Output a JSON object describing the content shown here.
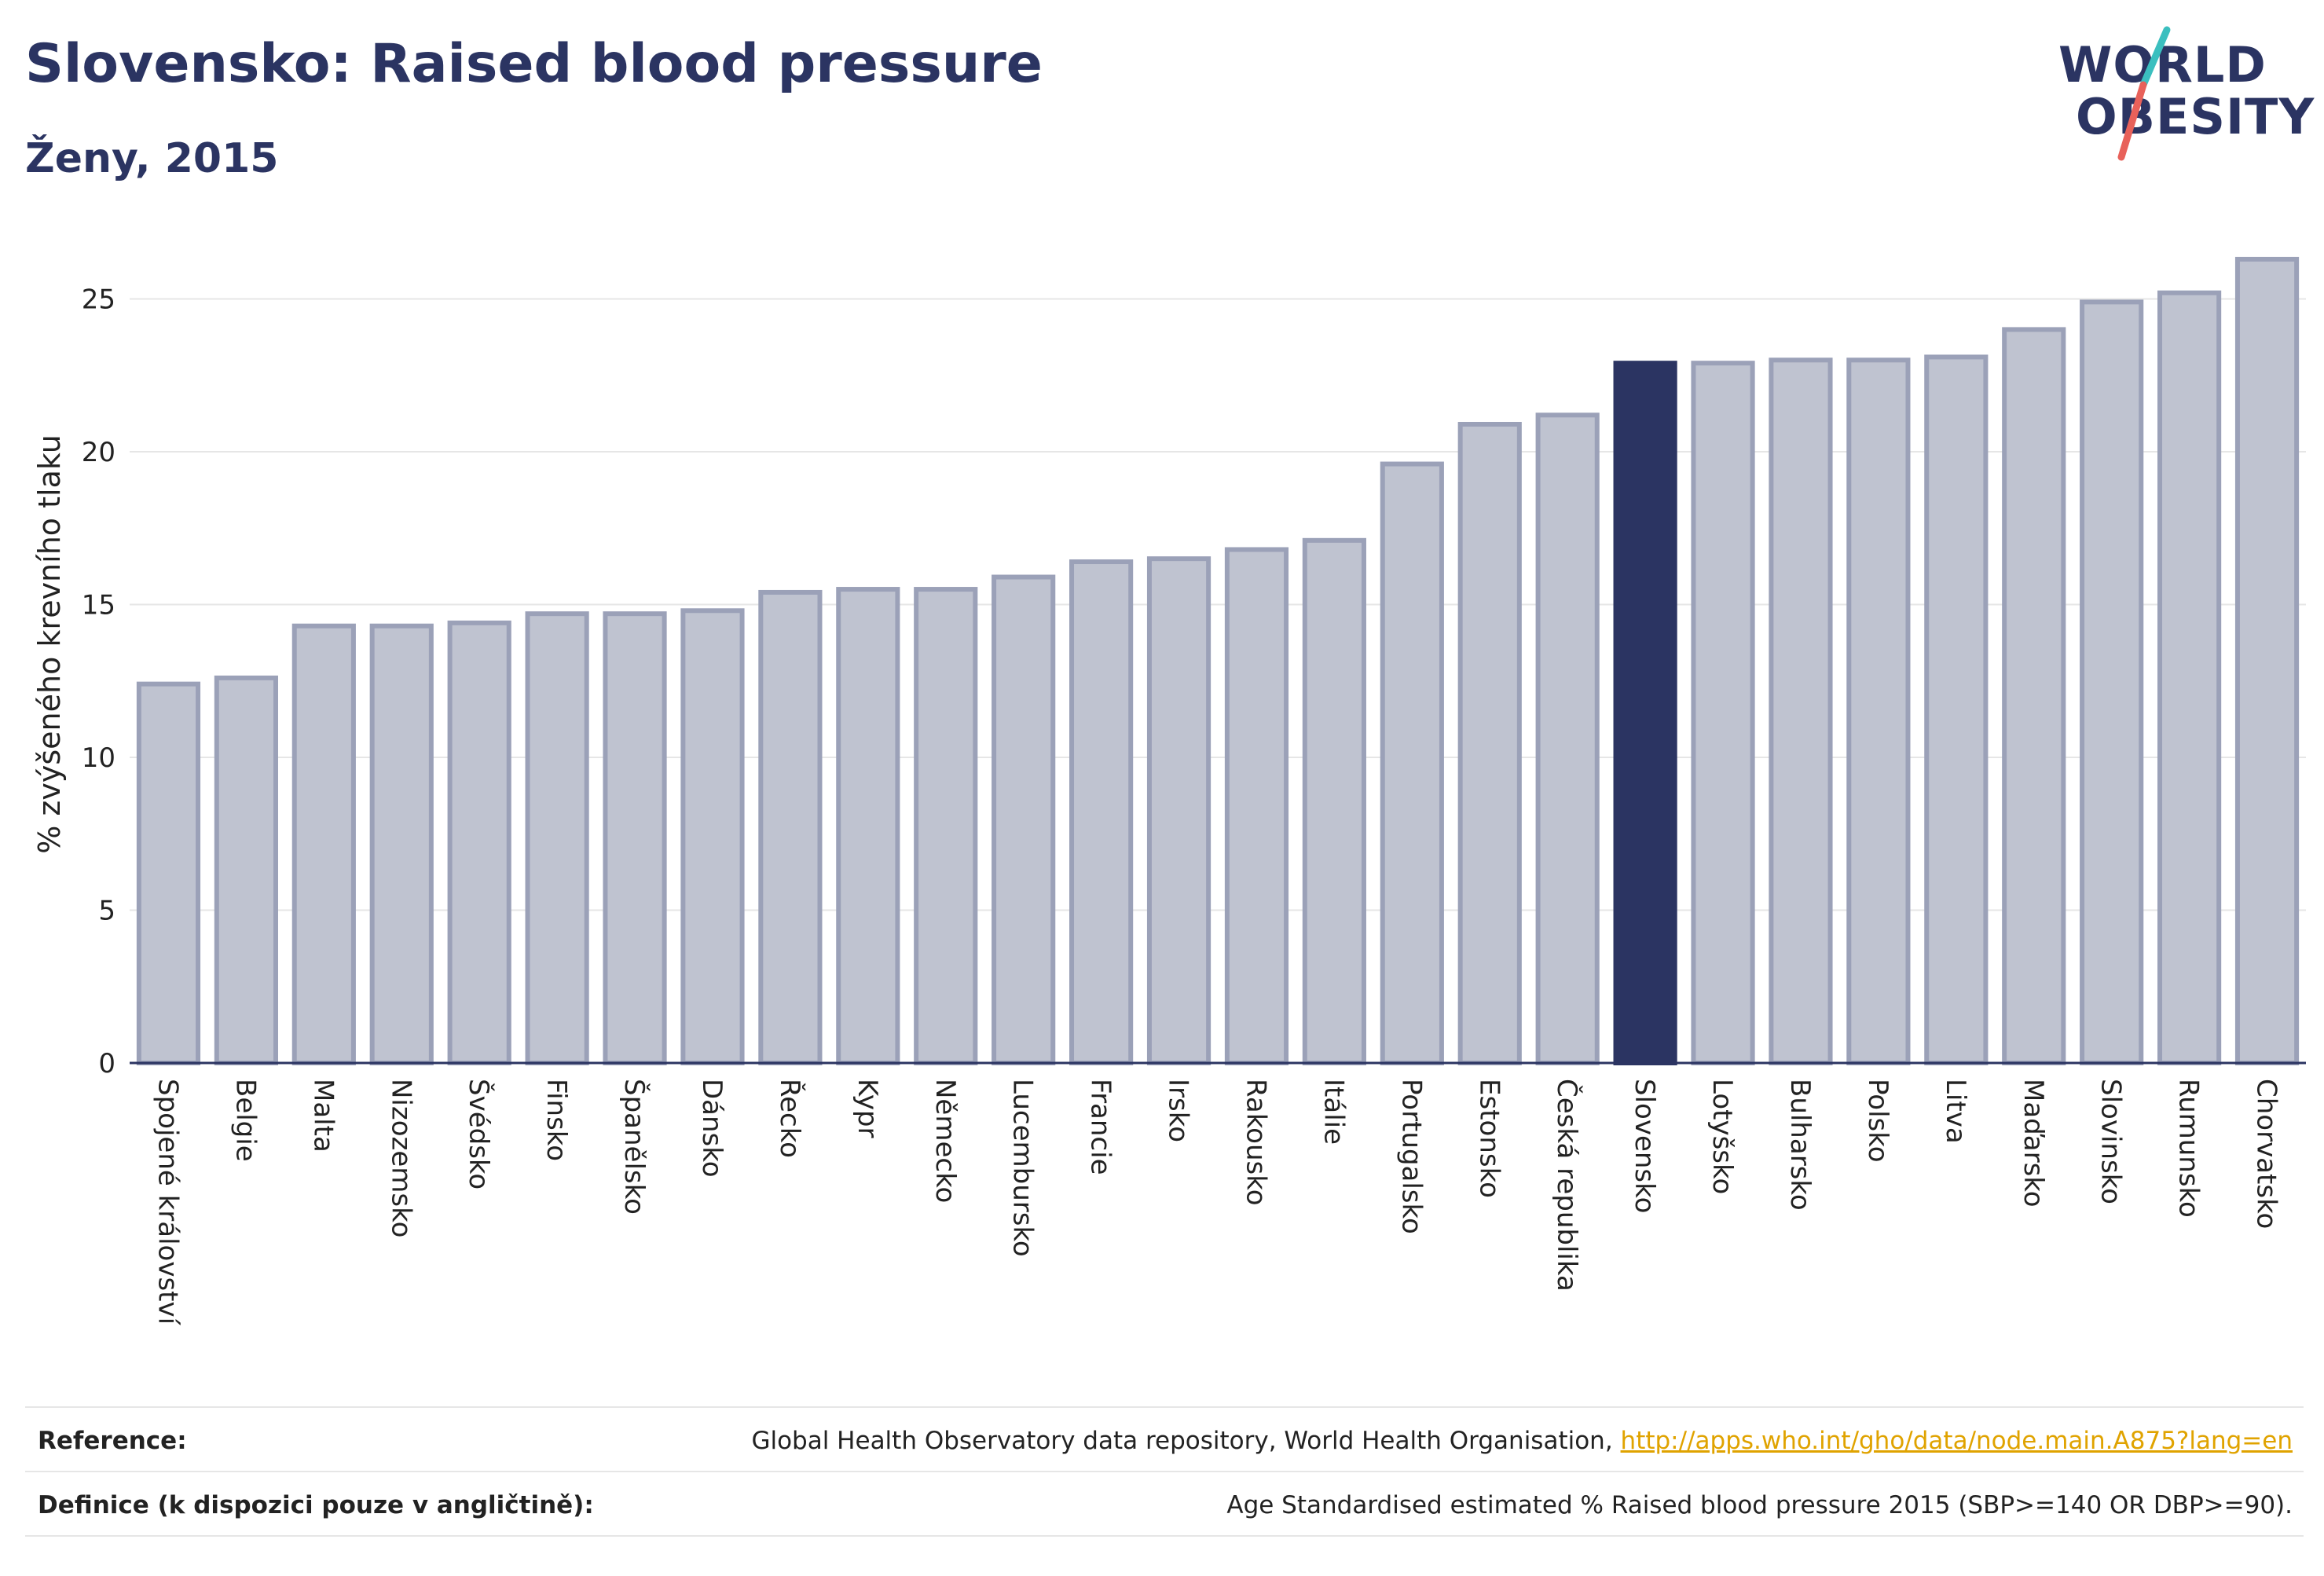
{
  "header": {
    "title": "Slovensko: Raised blood pressure",
    "subtitle": "Ženy, 2015"
  },
  "logo": {
    "line1": "WORLD",
    "line2": "OBESITY"
  },
  "footer": {
    "reference_label": "Reference:",
    "reference_text": "Global Health Observatory data repository, World Health Organisation, ",
    "reference_link": "http://apps.who.int/gho/data/node.main.A875?lang=en",
    "definition_label": "Definice (k dispozici pouze v angličtině):",
    "definition_text": "Age Standardised estimated % Raised blood pressure 2015 (SBP>=140 OR DBP>=90)."
  },
  "colors": {
    "bar_fill": "#bfc3d0",
    "bar_stroke": "#9ba1b8",
    "highlight_fill": "#2b3462",
    "title": "#2b3462",
    "logo_slash_teal": "#3bbfbf",
    "logo_slash_red": "#e8615a"
  },
  "chart_data": {
    "type": "bar",
    "ylabel": "% zvýšeného krevního tlaku",
    "xlabel": "",
    "ylim": [
      0,
      27
    ],
    "yticks": [
      0,
      5,
      10,
      15,
      20,
      25
    ],
    "grid": true,
    "highlight": "Slovensko",
    "categories": [
      "Spojené království",
      "Belgie",
      "Malta",
      "Nizozemsko",
      "Švédsko",
      "Finsko",
      "Španělsko",
      "Dánsko",
      "Řecko",
      "Kypr",
      "Německo",
      "Lucembursko",
      "Francie",
      "Irsko",
      "Rakousko",
      "Itálie",
      "Portugalsko",
      "Estonsko",
      "Česká republika",
      "Slovensko",
      "Lotyšsko",
      "Bulharsko",
      "Polsko",
      "Litva",
      "Maďarsko",
      "Slovinsko",
      "Rumunsko",
      "Chorvatsko"
    ],
    "values": [
      12.4,
      12.6,
      14.3,
      14.3,
      14.4,
      14.7,
      14.7,
      14.8,
      15.4,
      15.5,
      15.5,
      15.9,
      16.4,
      16.5,
      16.8,
      17.1,
      19.6,
      20.9,
      21.2,
      22.9,
      22.9,
      23.0,
      23.0,
      23.1,
      24.0,
      24.9,
      25.2,
      26.3
    ]
  }
}
